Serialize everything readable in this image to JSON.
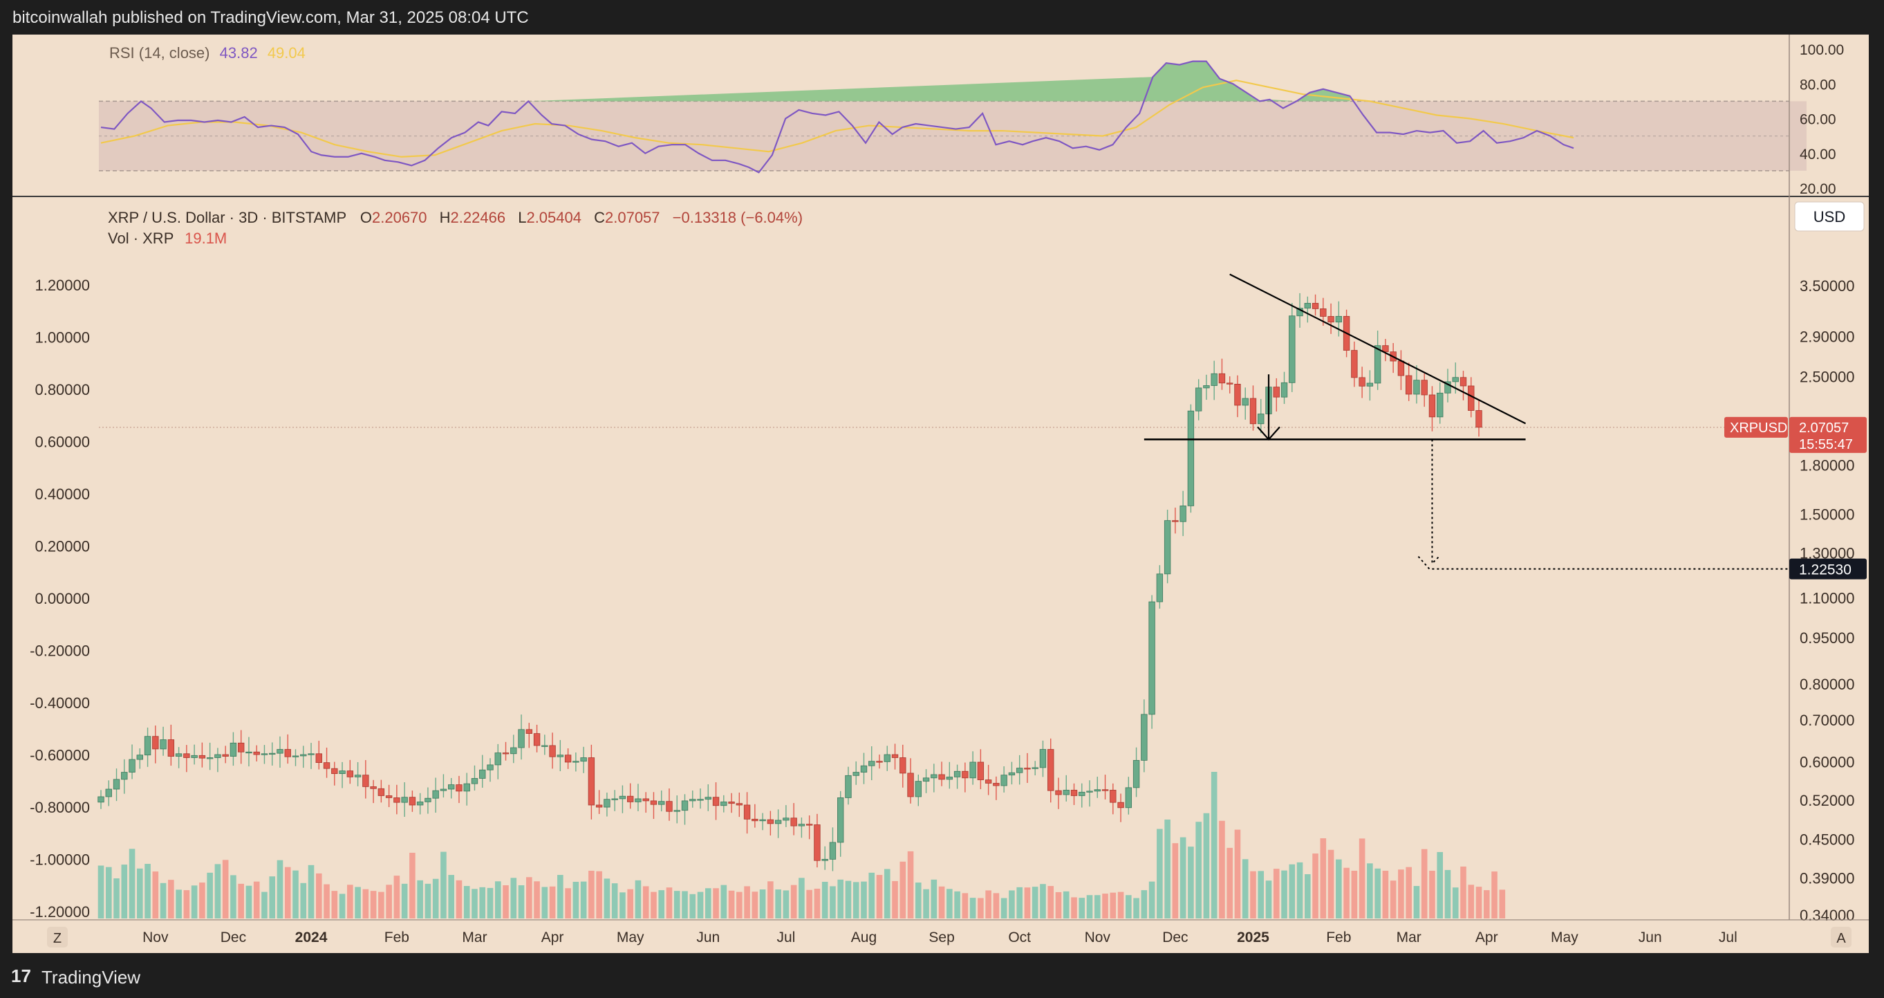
{
  "header": {
    "published": "bitcoinwallah published on TradingView.com, Mar 31, 2025 08:04 UTC"
  },
  "footer": {
    "brand": "TradingView",
    "logo_glyph": "17"
  },
  "rsi": {
    "label": "RSI (14, close)",
    "value": "43.82",
    "ma_value": "49.04",
    "axis": [
      "100.00",
      "80.00",
      "60.00",
      "40.00",
      "20.00"
    ],
    "range": [
      20,
      100
    ],
    "band": [
      30,
      70
    ],
    "line_color": "#7e57c2",
    "ma_color": "#f2c94c",
    "rsi_points": [
      [
        0,
        55
      ],
      [
        4,
        54
      ],
      [
        8,
        63
      ],
      [
        12,
        70
      ],
      [
        15,
        66
      ],
      [
        19,
        58
      ],
      [
        23,
        59
      ],
      [
        27,
        59
      ],
      [
        31,
        58
      ],
      [
        35,
        59
      ],
      [
        39,
        58
      ],
      [
        43,
        61
      ],
      [
        47,
        55
      ],
      [
        51,
        56
      ],
      [
        55,
        55
      ],
      [
        59,
        51
      ],
      [
        63,
        41
      ],
      [
        66,
        39
      ],
      [
        70,
        38
      ],
      [
        74,
        38
      ],
      [
        78,
        40
      ],
      [
        82,
        38
      ],
      [
        85,
        36
      ],
      [
        89,
        35
      ],
      [
        93,
        33
      ],
      [
        97,
        36
      ],
      [
        101,
        43
      ],
      [
        105,
        49
      ],
      [
        109,
        52
      ],
      [
        113,
        58
      ],
      [
        116,
        56
      ],
      [
        120,
        64
      ],
      [
        124,
        63
      ],
      [
        128,
        70
      ],
      [
        132,
        62
      ],
      [
        135,
        57
      ],
      [
        139,
        56
      ],
      [
        143,
        51
      ],
      [
        147,
        48
      ],
      [
        151,
        47
      ],
      [
        155,
        44
      ],
      [
        159,
        46
      ],
      [
        163,
        40
      ],
      [
        167,
        44
      ],
      [
        171,
        45
      ],
      [
        175,
        45
      ],
      [
        179,
        40
      ],
      [
        183,
        36
      ],
      [
        187,
        36
      ],
      [
        191,
        34
      ],
      [
        194,
        32
      ],
      [
        197,
        29
      ],
      [
        201,
        39
      ],
      [
        205,
        60
      ],
      [
        209,
        65
      ],
      [
        213,
        63
      ],
      [
        217,
        62
      ],
      [
        221,
        64
      ],
      [
        225,
        56
      ],
      [
        229,
        46
      ],
      [
        233,
        58
      ],
      [
        237,
        51
      ],
      [
        240,
        55
      ],
      [
        244,
        57
      ],
      [
        248,
        56
      ],
      [
        252,
        55
      ],
      [
        256,
        54
      ],
      [
        260,
        55
      ],
      [
        264,
        63
      ],
      [
        268,
        45
      ],
      [
        272,
        47
      ],
      [
        276,
        45
      ],
      [
        279,
        47
      ],
      [
        283,
        49
      ],
      [
        287,
        47
      ],
      [
        291,
        43
      ],
      [
        295,
        44
      ],
      [
        299,
        42
      ],
      [
        303,
        45
      ],
      [
        307,
        55
      ],
      [
        311,
        63
      ],
      [
        315,
        84
      ],
      [
        319,
        92
      ],
      [
        323,
        91
      ],
      [
        327,
        93
      ],
      [
        331,
        93
      ],
      [
        335,
        83
      ],
      [
        339,
        80
      ],
      [
        343,
        75
      ],
      [
        347,
        70
      ],
      [
        350,
        71
      ],
      [
        354,
        66
      ],
      [
        358,
        70
      ],
      [
        362,
        75
      ],
      [
        366,
        77
      ],
      [
        370,
        75
      ],
      [
        374,
        73
      ],
      [
        378,
        62
      ],
      [
        382,
        52
      ],
      [
        386,
        52
      ],
      [
        390,
        51
      ],
      [
        394,
        53
      ],
      [
        398,
        52
      ],
      [
        402,
        53
      ],
      [
        406,
        46
      ],
      [
        410,
        47
      ],
      [
        414,
        53
      ],
      [
        418,
        46
      ],
      [
        422,
        47
      ],
      [
        426,
        49
      ],
      [
        430,
        53
      ],
      [
        434,
        50
      ],
      [
        438,
        45
      ],
      [
        441,
        43
      ]
    ],
    "ma_points": [
      [
        0,
        46
      ],
      [
        10,
        50
      ],
      [
        20,
        56
      ],
      [
        30,
        58
      ],
      [
        40,
        58
      ],
      [
        50,
        56
      ],
      [
        60,
        52
      ],
      [
        70,
        45
      ],
      [
        80,
        41
      ],
      [
        90,
        38
      ],
      [
        100,
        39
      ],
      [
        110,
        46
      ],
      [
        120,
        53
      ],
      [
        130,
        57
      ],
      [
        140,
        56
      ],
      [
        150,
        53
      ],
      [
        160,
        49
      ],
      [
        170,
        46
      ],
      [
        180,
        45
      ],
      [
        190,
        43
      ],
      [
        200,
        41
      ],
      [
        210,
        46
      ],
      [
        220,
        53
      ],
      [
        230,
        56
      ],
      [
        240,
        55
      ],
      [
        250,
        54
      ],
      [
        260,
        53
      ],
      [
        270,
        53
      ],
      [
        280,
        52
      ],
      [
        290,
        51
      ],
      [
        300,
        50
      ],
      [
        310,
        55
      ],
      [
        320,
        68
      ],
      [
        330,
        78
      ],
      [
        340,
        82
      ],
      [
        350,
        78
      ],
      [
        360,
        74
      ],
      [
        370,
        72
      ],
      [
        380,
        70
      ],
      [
        390,
        66
      ],
      [
        400,
        62
      ],
      [
        410,
        60
      ],
      [
        420,
        57
      ],
      [
        430,
        53
      ],
      [
        441,
        49
      ]
    ]
  },
  "main": {
    "symbol": "XRP / U.S. Dollar · 3D · BITSTAMP",
    "ohlc": {
      "o_label": "O",
      "o": "2.20670",
      "h_label": "H",
      "h": "2.22466",
      "l_label": "L",
      "l": "2.05404",
      "c_label": "C",
      "c": "2.07057",
      "chg": "−0.13318 (−6.04%)"
    },
    "volume_label": "Vol · XRP",
    "volume_value": "19.1M",
    "currency_button": "USD",
    "left_axis": [
      "1.20000",
      "1.00000",
      "0.80000",
      "0.60000",
      "0.40000",
      "0.20000",
      "0.00000",
      "-0.20000",
      "-0.40000",
      "-0.60000",
      "-0.80000",
      "-1.00000",
      "-1.20000"
    ],
    "right_axis": [
      "3.50000",
      "2.90000",
      "2.50000",
      "1.80000",
      "1.50000",
      "1.30000",
      "1.10000",
      "0.95000",
      "0.80000",
      "0.70000",
      "0.60000",
      "0.52000",
      "0.45000",
      "0.39000",
      "0.34000"
    ],
    "x_axis": [
      {
        "label": "Nov",
        "idx": 7
      },
      {
        "label": "Dec",
        "idx": 17
      },
      {
        "label": "2024",
        "idx": 27,
        "bold": true
      },
      {
        "label": "Feb",
        "idx": 38
      },
      {
        "label": "Mar",
        "idx": 48
      },
      {
        "label": "Apr",
        "idx": 58
      },
      {
        "label": "May",
        "idx": 68
      },
      {
        "label": "Jun",
        "idx": 78
      },
      {
        "label": "Jul",
        "idx": 88
      },
      {
        "label": "Aug",
        "idx": 98
      },
      {
        "label": "Sep",
        "idx": 108
      },
      {
        "label": "Oct",
        "idx": 118
      },
      {
        "label": "Nov",
        "idx": 128
      },
      {
        "label": "Dec",
        "idx": 138
      },
      {
        "label": "2025",
        "idx": 148,
        "bold": true
      },
      {
        "label": "Feb",
        "idx": 159
      },
      {
        "label": "Mar",
        "idx": 168
      },
      {
        "label": "Apr",
        "idx": 178
      },
      {
        "label": "May",
        "idx": 188
      },
      {
        "label": "Jun",
        "idx": 199
      },
      {
        "label": "Jul",
        "idx": 209
      }
    ],
    "left_axis_btn": "Z",
    "right_axis_btn": "A",
    "price_tag": {
      "symbol": "XRPUSD",
      "price": "2.07057",
      "countdown": "15:55:47",
      "value": 2.07057
    },
    "target_tag": {
      "price": "1.22530",
      "value": 1.2253
    },
    "colors": {
      "up": "#6aab8a",
      "down": "#e05a4e",
      "vol_up": "#8ec9b4",
      "vol_down": "#f2a194",
      "tag_red": "#d9534a",
      "tag_black": "#131722"
    },
    "pattern": {
      "type": "descending triangle",
      "upper_line": [
        [
          145,
          3.65
        ],
        [
          183,
          2.1
        ]
      ],
      "support_level": 1.98,
      "support_from": 134,
      "support_to": 183,
      "support_mark_idx": 150,
      "support_mark_top": 2.52,
      "target_drop_idx": 171,
      "target_drop_start": 1.98
    }
  },
  "chart_data": {
    "type": "candlestick",
    "title": "XRP / U.S. Dollar · 3D · BITSTAMP",
    "interval": "3D",
    "y_scale": "log",
    "ylim": [
      0.33,
      4.2
    ],
    "x_range": [
      "2023-10-13",
      "2025-07-31"
    ],
    "closes": [
      0.527,
      0.542,
      0.562,
      0.577,
      0.605,
      0.615,
      0.659,
      0.629,
      0.651,
      0.612,
      0.618,
      0.609,
      0.614,
      0.608,
      0.609,
      0.616,
      0.612,
      0.643,
      0.622,
      0.622,
      0.616,
      0.618,
      0.619,
      0.628,
      0.611,
      0.613,
      0.616,
      0.618,
      0.598,
      0.585,
      0.574,
      0.58,
      0.567,
      0.571,
      0.547,
      0.543,
      0.529,
      0.525,
      0.516,
      0.526,
      0.511,
      0.517,
      0.524,
      0.539,
      0.542,
      0.551,
      0.538,
      0.553,
      0.564,
      0.582,
      0.593,
      0.62,
      0.618,
      0.632,
      0.676,
      0.666,
      0.637,
      0.637,
      0.611,
      0.615,
      0.599,
      0.601,
      0.609,
      0.511,
      0.507,
      0.522,
      0.523,
      0.528,
      0.517,
      0.523,
      0.519,
      0.512,
      0.518,
      0.499,
      0.501,
      0.519,
      0.522,
      0.522,
      0.526,
      0.51,
      0.517,
      0.514,
      0.511,
      0.485,
      0.482,
      0.484,
      0.477,
      0.483,
      0.487,
      0.473,
      0.476,
      0.475,
      0.416,
      0.418,
      0.445,
      0.525,
      0.57,
      0.577,
      0.591,
      0.601,
      0.6,
      0.616,
      0.609,
      0.575,
      0.527,
      0.558,
      0.565,
      0.572,
      0.562,
      0.567,
      0.579,
      0.565,
      0.599,
      0.561,
      0.554,
      0.549,
      0.571,
      0.576,
      0.586,
      0.585,
      0.587,
      0.628,
      0.539,
      0.531,
      0.54,
      0.529,
      0.536,
      0.538,
      0.541,
      0.54,
      0.516,
      0.506,
      0.545,
      0.603,
      0.715,
      1.085,
      1.203,
      1.466,
      1.46,
      1.548,
      2.2,
      2.396,
      2.417,
      2.526,
      2.44,
      2.43,
      2.247,
      2.305,
      2.098,
      2.176,
      2.404,
      2.316,
      2.443,
      3.129,
      3.22,
      3.279,
      3.213,
      3.123,
      3.058,
      3.124,
      2.754,
      2.49,
      2.412,
      2.439,
      2.803,
      2.739,
      2.647,
      2.508,
      2.341,
      2.466,
      2.335,
      2.152,
      2.351,
      2.452,
      2.491,
      2.414,
      2.204,
      2.071
    ],
    "volume_unit": "M",
    "volumes": [
      21.5,
      20.9,
      16.3,
      21.9,
      28.3,
      20.3,
      22.2,
      19.1,
      14.4,
      15.7,
      11.7,
      11.5,
      13.4,
      14.6,
      18.6,
      22.1,
      23.8,
      17.6,
      14.1,
      13.3,
      15.0,
      10.8,
      17.1,
      23.7,
      20.9,
      19.5,
      14.4,
      21.7,
      18.3,
      13.9,
      11.2,
      10.0,
      13.7,
      12.8,
      11.9,
      11.2,
      10.8,
      13.7,
      17.4,
      14.1,
      26.7,
      15.5,
      14.1,
      16.1,
      27.1,
      17.7,
      15.5,
      13.2,
      12.0,
      12.7,
      12.4,
      15.1,
      13.5,
      16.5,
      13.5,
      16.8,
      15.1,
      12.8,
      13.0,
      17.7,
      12.3,
      14.9,
      15.0,
      19.4,
      19.2,
      16.2,
      14.3,
      10.6,
      11.9,
      15.5,
      13.1,
      10.8,
      11.5,
      12.6,
      11.2,
      11.1,
      9.9,
      10.8,
      12.3,
      12.3,
      13.6,
      11.3,
      10.8,
      13.1,
      10.9,
      11.8,
      15.1,
      11.8,
      11.4,
      13.6,
      16.5,
      11.6,
      12.1,
      14.9,
      13.1,
      15.8,
      15.3,
      14.8,
      15.0,
      18.6,
      17.7,
      20.1,
      15.2,
      23.1,
      27.3,
      14.6,
      11.9,
      15.8,
      13.0,
      12.0,
      11.0,
      10.3,
      8.4,
      8.3,
      11.4,
      10.3,
      8.3,
      11.4,
      12.7,
      12.6,
      12.9,
      14.0,
      13.2,
      10.7,
      11.0,
      8.6,
      8.4,
      9.5,
      9.5,
      10.1,
      10.5,
      10.8,
      9.5,
      8.3,
      11.5,
      15.0,
      36.4,
      40.2,
      30.6,
      33.0,
      29.2,
      39.3,
      42.8,
      59.6,
      39.7,
      28.7,
      36.1,
      24.1,
      19.2,
      19.3,
      15.4,
      20.2,
      19.5,
      22.0,
      22.8,
      18.0,
      26.4,
      32.6,
      27.9,
      24.0,
      20.6,
      19.4,
      32.5,
      22.4,
      20.3,
      19.4,
      15.4,
      19.9,
      20.9,
      13.2,
      28.2,
      19.4,
      27.0,
      19.7,
      12.6,
      21.1,
      13.7,
      12.9,
      11.5,
      19.1,
      11.7
    ]
  }
}
